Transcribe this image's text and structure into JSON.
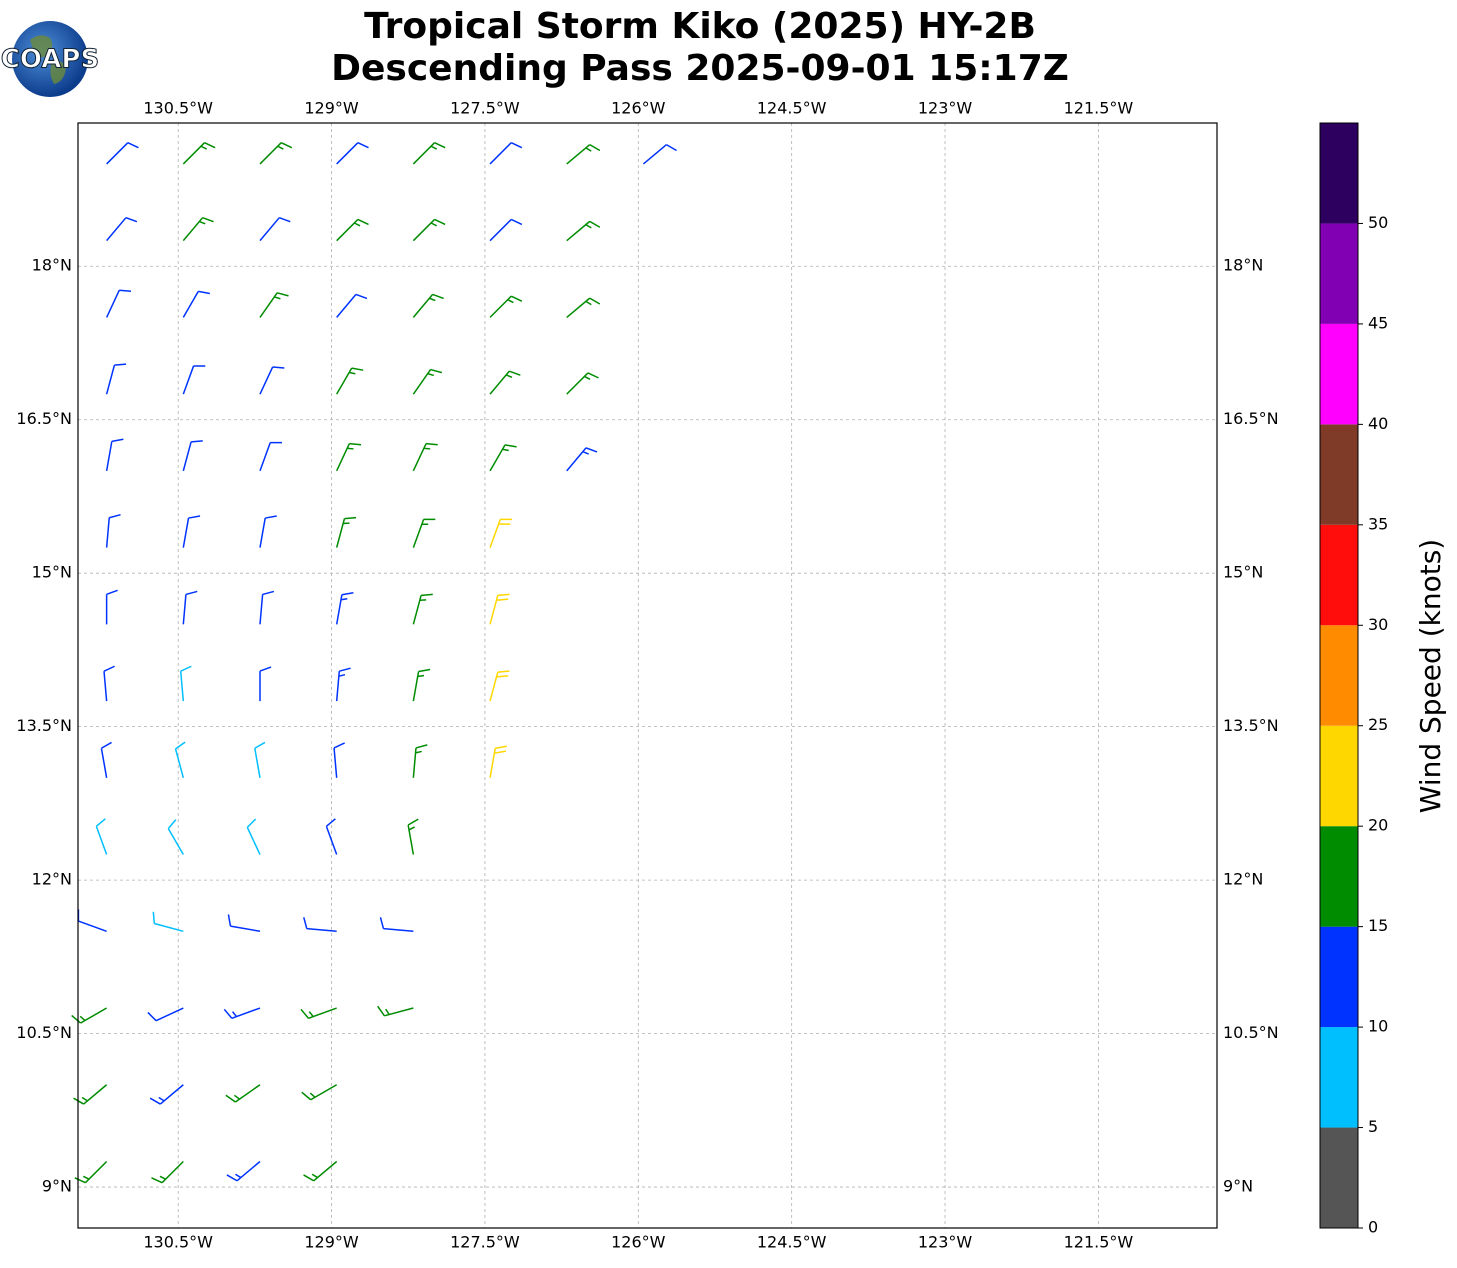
{
  "logo": {
    "text": "COAPS"
  },
  "chart_data": {
    "type": "barbs",
    "title": "Tropical Storm Kiko (2025) HY-2B",
    "subtitle": "Descending Pass 2025-09-01 15:17Z",
    "xlim": [
      -131.48,
      -120.34
    ],
    "ylim": [
      8.6,
      19.4
    ],
    "xticks": [
      {
        "value": -130.5,
        "label": "130.5°W"
      },
      {
        "value": -129,
        "label": "129°W"
      },
      {
        "value": -127.5,
        "label": "127.5°W"
      },
      {
        "value": -126,
        "label": "126°W"
      },
      {
        "value": -124.5,
        "label": "124.5°W"
      },
      {
        "value": -123,
        "label": "123°W"
      },
      {
        "value": -121.5,
        "label": "121.5°W"
      }
    ],
    "yticks": [
      {
        "value": 9,
        "label": "9°N"
      },
      {
        "value": 10.5,
        "label": "10.5°N"
      },
      {
        "value": 12,
        "label": "12°N"
      },
      {
        "value": 13.5,
        "label": "13.5°N"
      },
      {
        "value": 15,
        "label": "15°N"
      },
      {
        "value": 16.5,
        "label": "16.5°N"
      },
      {
        "value": 18,
        "label": "18°N"
      }
    ],
    "grid": true,
    "colorbar": {
      "label": "Wind Speed (knots)",
      "bounds": [
        0,
        5,
        10,
        15,
        20,
        25,
        30,
        35,
        40,
        45,
        50,
        55
      ],
      "colors": [
        "#555555",
        "#00bfff",
        "#0033ff",
        "#008c00",
        "#ffd700",
        "#ff8c00",
        "#ff0d0d",
        "#7f3a28",
        "#ff00ff",
        "#8200b4",
        "#2d0060"
      ],
      "ticks": [
        0,
        5,
        10,
        15,
        20,
        25,
        30,
        35,
        40,
        45,
        50
      ]
    },
    "barbs": {
      "lon": [
        -131.2,
        -130.45,
        -129.7,
        -128.95,
        -128.2,
        -127.45,
        -126.7,
        -125.95,
        -131.2,
        -130.45,
        -129.7,
        -128.95,
        -128.2,
        -127.45,
        -126.7,
        -131.2,
        -130.45,
        -129.7,
        -128.95,
        -128.2,
        -127.45,
        -126.7,
        -131.2,
        -130.45,
        -129.7,
        -128.95,
        -128.2,
        -127.45,
        -126.7,
        -131.2,
        -130.45,
        -129.7,
        -128.95,
        -128.2,
        -127.45,
        -126.7,
        -131.2,
        -130.45,
        -129.7,
        -128.95,
        -128.2,
        -127.45,
        -131.2,
        -130.45,
        -129.7,
        -128.95,
        -128.2,
        -127.45,
        -131.2,
        -130.45,
        -129.7,
        -128.95,
        -128.2,
        -127.45,
        -131.2,
        -130.45,
        -129.7,
        -128.95,
        -128.2,
        -127.45,
        -131.2,
        -130.45,
        -129.7,
        -128.95,
        -128.2,
        -131.2,
        -130.45,
        -129.7,
        -128.95,
        -128.2,
        -131.2,
        -130.45,
        -129.7,
        -128.95,
        -128.2,
        -131.2,
        -130.45,
        -129.7,
        -128.95,
        -131.2,
        -130.45,
        -129.7,
        -128.95
      ],
      "lat": [
        19,
        19,
        19,
        19,
        19,
        19,
        19,
        19,
        18.25,
        18.25,
        18.25,
        18.25,
        18.25,
        18.25,
        18.25,
        17.5,
        17.5,
        17.5,
        17.5,
        17.5,
        17.5,
        17.5,
        16.75,
        16.75,
        16.75,
        16.75,
        16.75,
        16.75,
        16.75,
        16,
        16,
        16,
        16,
        16,
        16,
        16,
        15.25,
        15.25,
        15.25,
        15.25,
        15.25,
        15.25,
        14.5,
        14.5,
        14.5,
        14.5,
        14.5,
        14.5,
        13.75,
        13.75,
        13.75,
        13.75,
        13.75,
        13.75,
        13,
        13,
        13,
        13,
        13,
        13,
        12.25,
        12.25,
        12.25,
        12.25,
        12.25,
        11.5,
        11.5,
        11.5,
        11.5,
        11.5,
        10.75,
        10.75,
        10.75,
        10.75,
        10.75,
        10,
        10,
        10,
        10,
        9.25,
        9.25,
        9.25,
        9.25
      ],
      "speed": [
        12,
        17,
        17,
        12,
        17,
        12,
        17,
        12,
        12,
        17,
        12,
        17,
        17,
        12,
        17,
        12,
        12,
        17,
        12,
        17,
        17,
        17,
        12,
        12,
        12,
        17,
        17,
        17,
        17,
        12,
        12,
        12,
        17,
        17,
        17,
        13,
        12,
        12,
        12,
        17,
        17,
        22,
        12,
        12,
        12,
        13,
        17,
        22,
        12,
        8,
        12,
        13,
        17,
        22,
        12,
        8,
        8,
        12,
        17,
        22,
        8,
        8,
        8,
        12,
        17,
        12,
        8,
        12,
        12,
        12,
        17,
        12,
        13,
        17,
        17,
        17,
        13,
        17,
        17,
        17,
        17,
        13,
        17
      ],
      "dir": [
        45,
        45,
        45,
        45,
        45,
        45,
        50,
        50,
        40,
        40,
        40,
        45,
        45,
        45,
        50,
        25,
        30,
        35,
        40,
        40,
        45,
        50,
        15,
        20,
        25,
        30,
        35,
        40,
        45,
        10,
        15,
        20,
        25,
        25,
        30,
        40,
        5,
        10,
        10,
        15,
        20,
        20,
        360,
        5,
        5,
        10,
        15,
        15,
        355,
        355,
        360,
        5,
        10,
        15,
        350,
        345,
        350,
        355,
        5,
        10,
        340,
        330,
        335,
        340,
        350,
        290,
        285,
        280,
        275,
        275,
        240,
        245,
        250,
        250,
        255,
        230,
        230,
        235,
        240,
        225,
        225,
        230,
        230
      ]
    }
  }
}
